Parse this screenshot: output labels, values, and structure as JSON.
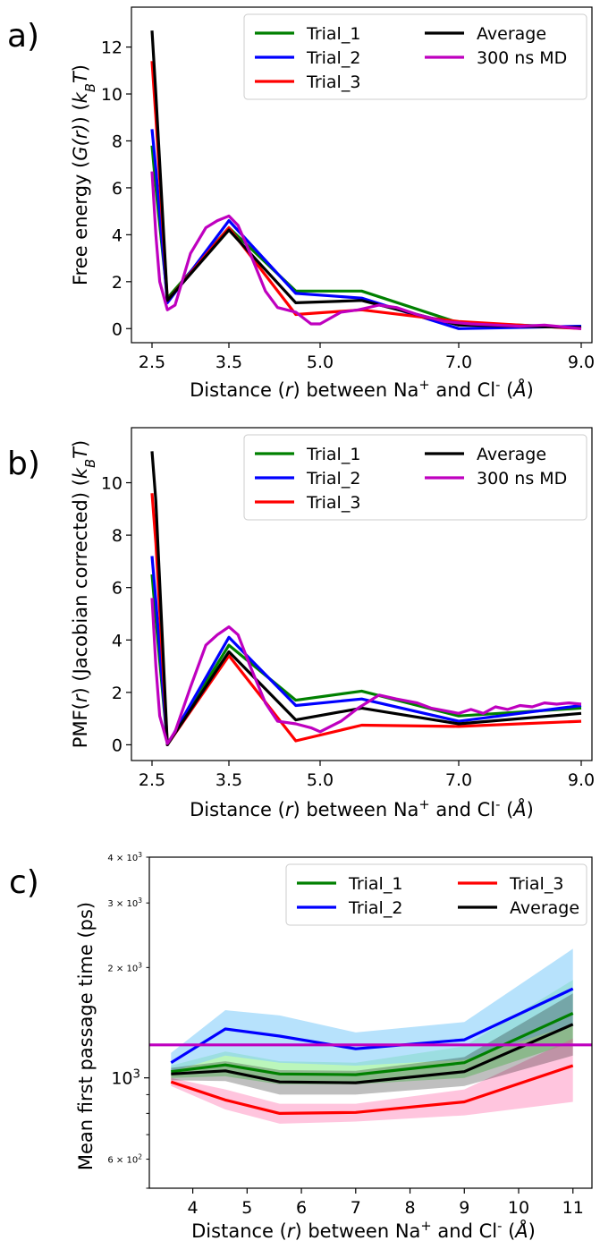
{
  "chart_data": [
    {
      "panel_label": "a)",
      "type": "line",
      "xlabel": "Distance ($r$) between Na$^+$ and Cl$^-$ ($\\AA$)",
      "ylabel": "Free energy ($G(r)$) ($k_BT$)",
      "xticks": [
        "2.5",
        "3.5",
        "5.0",
        "7.0",
        "9.0"
      ],
      "yticks": [
        "0",
        "2",
        "4",
        "6",
        "8",
        "10",
        "12"
      ],
      "xlim": [
        2.0,
        9.15
      ],
      "ylim": [
        -0.6,
        13.7
      ],
      "x_scale": "piecewise_categorical",
      "legend": {
        "position": "top-right",
        "columns": 2
      },
      "series": [
        {
          "name": "Trial_1",
          "color": "#008000",
          "x": [
            2.5,
            2.55,
            2.7,
            3.5,
            4.6,
            5.6,
            7.0,
            9.0
          ],
          "values": [
            7.8,
            6.0,
            1.3,
            4.3,
            1.6,
            1.6,
            0.25,
            0.05
          ]
        },
        {
          "name": "Trial_2",
          "color": "#0000ff",
          "x": [
            2.5,
            2.55,
            2.7,
            3.5,
            4.6,
            5.6,
            7.0,
            9.0
          ],
          "values": [
            8.5,
            6.8,
            1.1,
            4.6,
            1.5,
            1.3,
            0.0,
            0.1
          ]
        },
        {
          "name": "Trial_3",
          "color": "#ff0000",
          "x": [
            2.5,
            2.55,
            2.7,
            3.5,
            4.6,
            5.6,
            7.0,
            9.0
          ],
          "values": [
            11.4,
            9.0,
            1.2,
            4.3,
            0.6,
            0.8,
            0.3,
            0.0
          ]
        },
        {
          "name": "Average",
          "color": "#000000",
          "x": [
            2.5,
            2.55,
            2.7,
            3.5,
            4.6,
            5.6,
            7.0,
            9.0
          ],
          "values": [
            12.7,
            10.0,
            1.2,
            4.2,
            1.1,
            1.2,
            0.15,
            0.05
          ]
        },
        {
          "name": "300 ns MD",
          "color": "#bf00bf",
          "x": [
            2.5,
            2.55,
            2.6,
            2.7,
            2.8,
            3.0,
            3.2,
            3.35,
            3.5,
            3.65,
            3.85,
            4.1,
            4.3,
            4.6,
            4.85,
            5.0,
            5.3,
            5.55,
            5.85,
            6.1,
            6.4,
            6.8,
            7.2,
            7.6,
            8.0,
            8.4,
            8.8,
            9.0
          ],
          "values": [
            6.7,
            4.0,
            2.0,
            0.8,
            1.0,
            3.2,
            4.3,
            4.6,
            4.8,
            4.4,
            3.2,
            1.6,
            0.9,
            0.7,
            0.2,
            0.2,
            0.7,
            0.8,
            1.0,
            0.9,
            0.6,
            0.3,
            0.2,
            0.15,
            0.1,
            0.15,
            0.05,
            0.0
          ]
        }
      ]
    },
    {
      "panel_label": "b)",
      "type": "line",
      "xlabel": "Distance ($r$) between Na$^+$ and Cl$^-$ ($\\AA$)",
      "ylabel": "PMF($r$) (Jacobian corrected) ($k_BT$)",
      "xticks": [
        "2.5",
        "3.5",
        "5.0",
        "7.0",
        "9.0"
      ],
      "yticks": [
        "0",
        "2",
        "4",
        "6",
        "8",
        "10"
      ],
      "xlim": [
        2.0,
        9.15
      ],
      "ylim": [
        -0.6,
        12.1
      ],
      "x_scale": "piecewise_categorical",
      "legend": {
        "position": "top-right",
        "columns": 2
      },
      "series": [
        {
          "name": "Trial_1",
          "color": "#008000",
          "x": [
            2.5,
            2.55,
            2.7,
            3.5,
            4.6,
            5.6,
            7.0,
            9.0
          ],
          "values": [
            6.5,
            4.8,
            0.0,
            3.8,
            1.7,
            2.05,
            1.1,
            1.4
          ]
        },
        {
          "name": "Trial_2",
          "color": "#0000ff",
          "x": [
            2.5,
            2.55,
            2.7,
            3.5,
            4.6,
            5.6,
            7.0,
            9.0
          ],
          "values": [
            7.2,
            5.5,
            0.0,
            4.1,
            1.5,
            1.75,
            0.9,
            1.5
          ]
        },
        {
          "name": "Trial_3",
          "color": "#ff0000",
          "x": [
            2.5,
            2.55,
            2.7,
            3.5,
            4.6,
            5.6,
            7.0,
            9.0
          ],
          "values": [
            9.6,
            7.7,
            0.0,
            3.4,
            0.15,
            0.75,
            0.7,
            0.9
          ]
        },
        {
          "name": "Average",
          "color": "#000000",
          "x": [
            2.5,
            2.55,
            2.7,
            3.5,
            4.6,
            5.6,
            7.0,
            9.0
          ],
          "values": [
            11.2,
            9.3,
            0.0,
            3.55,
            0.95,
            1.4,
            0.8,
            1.2
          ]
        },
        {
          "name": "300 ns MD",
          "color": "#bf00bf",
          "x": [
            2.5,
            2.55,
            2.6,
            2.7,
            2.8,
            3.0,
            3.2,
            3.35,
            3.5,
            3.65,
            3.85,
            4.1,
            4.3,
            4.6,
            4.85,
            5.0,
            5.3,
            5.55,
            5.85,
            6.1,
            6.4,
            6.6,
            6.8,
            7.0,
            7.2,
            7.4,
            7.6,
            7.8,
            8.0,
            8.2,
            8.4,
            8.6,
            8.8,
            9.0
          ],
          "values": [
            5.6,
            3.0,
            1.1,
            0.05,
            0.5,
            2.2,
            3.8,
            4.2,
            4.5,
            4.2,
            3.0,
            1.6,
            0.9,
            0.8,
            0.65,
            0.5,
            0.9,
            1.4,
            1.9,
            1.75,
            1.6,
            1.4,
            1.3,
            1.2,
            1.35,
            1.2,
            1.45,
            1.35,
            1.5,
            1.45,
            1.6,
            1.55,
            1.6,
            1.55
          ]
        }
      ]
    },
    {
      "panel_label": "c)",
      "type": "line",
      "xlabel": "Distance ($r$) between Na$^+$ and Cl$^-$ ($\\AA$)",
      "ylabel": "Mean first passage time (ps)",
      "xticks": [
        "4",
        "5",
        "6",
        "7",
        "8",
        "9",
        "10",
        "11"
      ],
      "yticks_major": [
        "10^3"
      ],
      "yticks_minor": [
        "6 × 10^2",
        "2 × 10^3",
        "3 × 10^3",
        "4 × 10^3"
      ],
      "xlim": [
        3.2,
        11.35
      ],
      "ylim": [
        500,
        4000
      ],
      "y_scale": "log",
      "legend": {
        "position": "top-right",
        "columns": 2
      },
      "hline": {
        "value": 1230,
        "color": "#bf00bf"
      },
      "series": [
        {
          "name": "Trial_1",
          "color": "#008000",
          "band_color": "#8ef08e",
          "x": [
            3.6,
            4.6,
            5.6,
            7.0,
            9.0,
            11.0
          ],
          "values": [
            1040,
            1085,
            1025,
            1020,
            1100,
            1500
          ],
          "lower": [
            1000,
            1010,
            960,
            960,
            1000,
            1250
          ],
          "upper": [
            1080,
            1180,
            1110,
            1100,
            1220,
            1850
          ]
        },
        {
          "name": "Trial_2",
          "color": "#0000ff",
          "band_color": "#87cefa",
          "x": [
            3.6,
            4.6,
            5.6,
            7.0,
            9.0,
            11.0
          ],
          "values": [
            1100,
            1360,
            1300,
            1200,
            1270,
            1750
          ],
          "lower": [
            1040,
            1150,
            1100,
            1080,
            1120,
            1400
          ],
          "upper": [
            1170,
            1530,
            1480,
            1330,
            1420,
            2250
          ]
        },
        {
          "name": "Trial_3",
          "color": "#ff0000",
          "band_color": "#ff9ec8",
          "x": [
            3.6,
            4.6,
            5.6,
            7.0,
            9.0,
            11.0
          ],
          "values": [
            975,
            870,
            800,
            805,
            860,
            1080
          ],
          "lower": [
            950,
            820,
            750,
            760,
            790,
            860
          ],
          "upper": [
            1000,
            930,
            850,
            850,
            930,
            1280
          ]
        },
        {
          "name": "Average",
          "color": "#000000",
          "x": [
            3.6,
            4.6,
            5.6,
            7.0,
            9.0,
            11.0
          ],
          "values": [
            1025,
            1045,
            975,
            970,
            1040,
            1400
          ],
          "lower": [
            985,
            980,
            900,
            900,
            950,
            1150
          ],
          "upper": [
            1065,
            1110,
            1050,
            1045,
            1140,
            1700
          ]
        }
      ]
    }
  ]
}
